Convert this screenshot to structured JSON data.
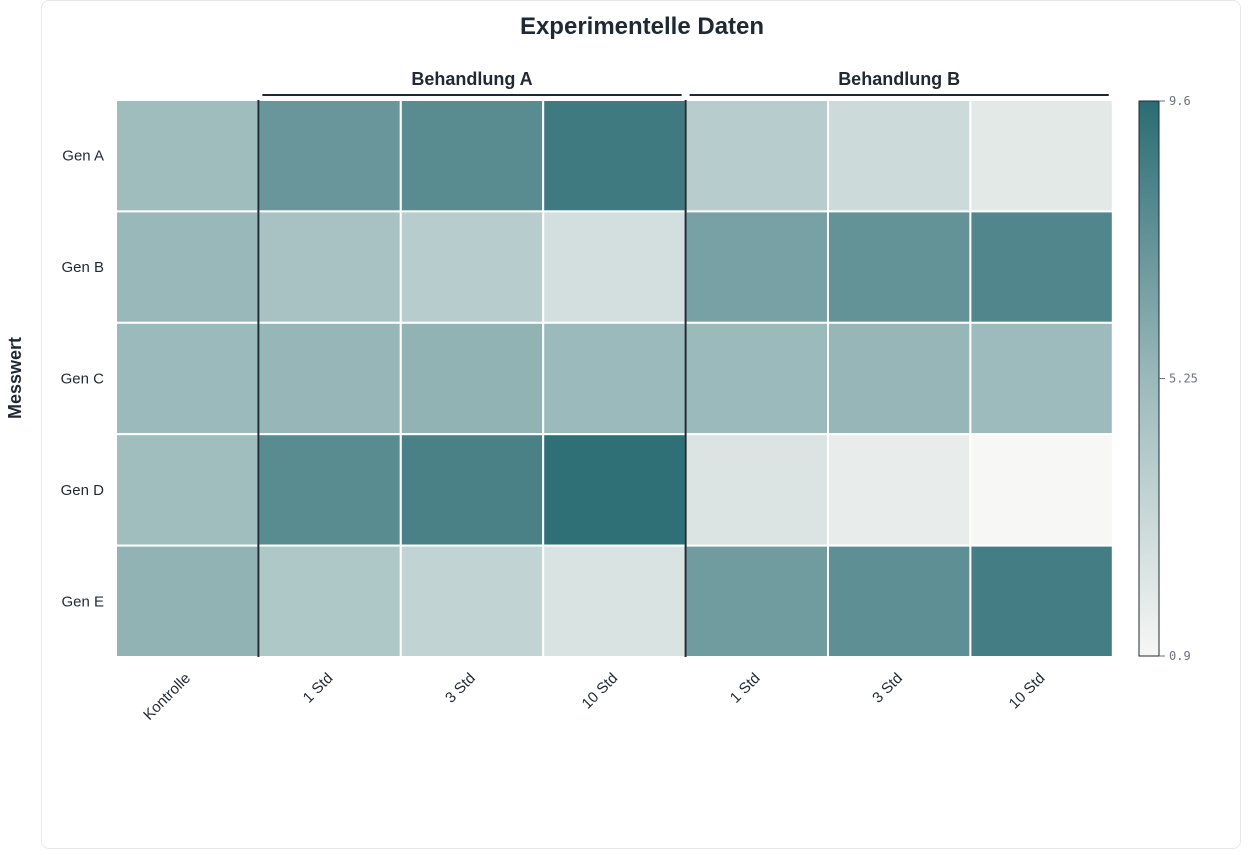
{
  "chart_data": {
    "type": "heatmap",
    "title": "Experimentelle Daten",
    "ylabel": "Messwert",
    "rows": [
      "Gen A",
      "Gen B",
      "Gen C",
      "Gen D",
      "Gen E"
    ],
    "columns": [
      "Kontrolle",
      "1 Std",
      "3 Std",
      "10 Std",
      "1 Std",
      "3 Std",
      "10 Std"
    ],
    "column_groups": [
      {
        "label": "Behandlung A",
        "start": 1,
        "end": 3
      },
      {
        "label": "Behandlung B",
        "start": 4,
        "end": 6
      }
    ],
    "values": [
      [
        5.0,
        7.2,
        7.8,
        8.8,
        3.9,
        2.9,
        1.9
      ],
      [
        5.3,
        4.6,
        3.9,
        2.6,
        6.6,
        7.4,
        8.1
      ],
      [
        5.2,
        5.4,
        5.6,
        5.2,
        5.2,
        5.4,
        5.1
      ],
      [
        4.9,
        7.8,
        8.4,
        9.4,
        2.2,
        1.6,
        0.9
      ],
      [
        5.6,
        4.3,
        3.4,
        2.3,
        6.9,
        7.6,
        8.6
      ]
    ],
    "colorbar": {
      "min": 0.9,
      "max": 9.6,
      "ticks": [
        "9.6",
        "5.25",
        "0.9"
      ]
    },
    "colors": {
      "low": "#f7f7f5",
      "mid": "#9ab9ba",
      "high": "#2a6c74"
    }
  }
}
